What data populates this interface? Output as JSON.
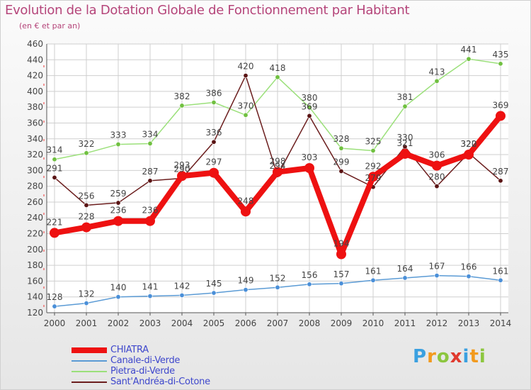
{
  "title": "Evolution de la Dotation Globale de Fonctionnement par Habitant",
  "subtitle": "(en € et par an)",
  "logo": [
    "P",
    "r",
    "o",
    "x",
    "i",
    "t",
    "i"
  ],
  "colors": {
    "title": "#b5457a",
    "grid": "#cfcfcf",
    "axis": "#555555",
    "label": "#444444",
    "legend_text": "#3f48cc",
    "logo": [
      "#3aa0e0",
      "#f29a1e",
      "#8cc63f",
      "#e03a2e",
      "#3aa0e0",
      "#f29a1e",
      "#8cc63f"
    ]
  },
  "chart_data": {
    "type": "line",
    "title": "Evolution de la Dotation Globale de Fonctionnement par Habitant",
    "ylabel": "(en € et par an)",
    "xlabel": "",
    "ylim": [
      120,
      460
    ],
    "yticks": [
      120,
      140,
      160,
      180,
      200,
      220,
      240,
      260,
      280,
      300,
      320,
      340,
      360,
      380,
      400,
      420,
      440,
      460
    ],
    "categories": [
      "2000",
      "2001",
      "2002",
      "2003",
      "2004",
      "2005",
      "2006",
      "2007",
      "2008",
      "2009",
      "2010",
      "2011",
      "2012",
      "2013",
      "2014"
    ],
    "grid": true,
    "series": [
      {
        "name": "Canale-di-Verde",
        "color": "#5b9bd5",
        "marker": "#4a8fd8",
        "values": [
          128,
          132,
          140,
          141,
          142,
          145,
          149,
          152,
          156,
          157,
          161,
          164,
          167,
          166,
          161
        ],
        "labels": [
          "128",
          "132",
          "140",
          "141",
          "142",
          "145",
          "149",
          "152",
          "156",
          "157",
          "161",
          "164",
          "167",
          "166",
          "161"
        ]
      },
      {
        "name": "Pietra-di-Verde",
        "color": "#9be07a",
        "marker": "#70c040",
        "values": [
          314,
          322,
          333,
          334,
          382,
          386,
          370,
          418,
          380,
          328,
          325,
          381,
          413,
          441,
          435
        ],
        "labels": [
          "314",
          "322",
          "333",
          "334",
          "382",
          "386",
          "370",
          "418",
          "380",
          "328",
          "325",
          "381",
          "413",
          "441",
          "435"
        ]
      },
      {
        "name": "Sant'Andréa-di-Cotone",
        "color": "#6b1d1d",
        "marker": "#5a1414",
        "values": [
          291,
          256,
          259,
          287,
          290,
          336,
          420,
          294,
          369,
          299,
          279,
          330,
          280,
          322,
          287
        ],
        "labels": [
          "291",
          "256",
          "259",
          "287",
          "290",
          "336",
          "420",
          "294",
          "369",
          "299",
          "279",
          "330",
          "280",
          "322",
          "287"
        ]
      },
      {
        "name": "CHIATRA",
        "color": "#ee1111",
        "marker": "#ee1111",
        "values": [
          221,
          228,
          236,
          236,
          293,
          297,
          248,
          298,
          303,
          194,
          292,
          321,
          306,
          320,
          369
        ],
        "labels": [
          "221",
          "228",
          "236",
          "236",
          "293",
          "297",
          "248",
          "298",
          "303",
          "194",
          "292",
          "321",
          "306",
          "320",
          "369"
        ]
      }
    ],
    "legend_order": [
      "CHIATRA",
      "Canale-di-Verde",
      "Pietra-di-Verde",
      "Sant'Andréa-di-Cotone"
    ]
  }
}
